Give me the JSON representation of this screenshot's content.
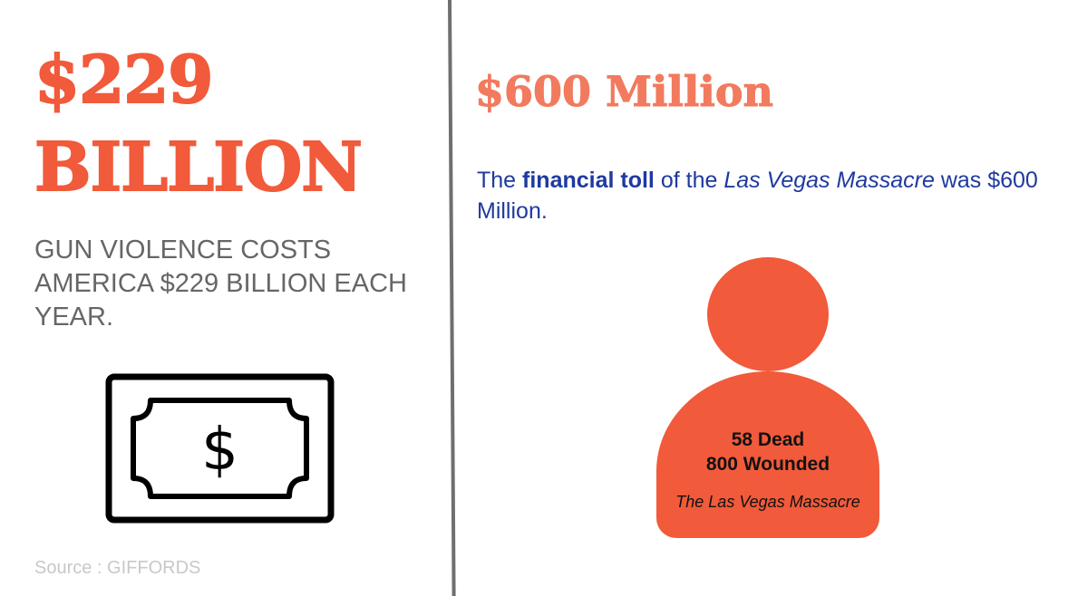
{
  "colors": {
    "accent": "#f15a3a",
    "accent_light": "#f27a5e",
    "navy": "#1f3a9e",
    "gray_text": "#666666",
    "source_text": "#c8c8c8",
    "divider": "#6f6f6f"
  },
  "left": {
    "headline_line1": "$229",
    "headline_line2": "BILLION",
    "description": "GUN VIOLENCE COSTS AMERICA $229 BILLION EACH YEAR.",
    "icon": "dollar-bill-icon",
    "bill_symbol": "$",
    "source": "Source : GIFFORDS"
  },
  "right": {
    "headline": "$600 Million",
    "toll_part1": "The ",
    "toll_bold": "financial toll",
    "toll_part2": " of the ",
    "toll_italic": "Las Vegas Massacre",
    "toll_part3": " was $600 Million.",
    "icon": "person-silhouette-icon",
    "dead": "58 Dead",
    "wounded": "800 Wounded",
    "caption": "The Las Vegas Massacre"
  }
}
